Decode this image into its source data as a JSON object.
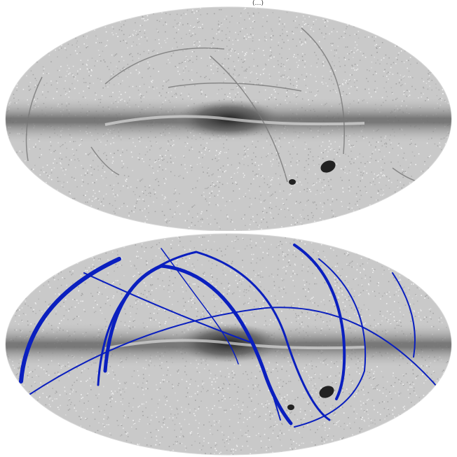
{
  "figure": {
    "header_fragment": "(…)",
    "panels": [
      {
        "id": "top",
        "projection": "mollweide",
        "description_color_scale": "grayscale",
        "overlay_tracks": false
      },
      {
        "id": "bottom",
        "projection": "mollweide",
        "description_color_scale": "grayscale",
        "overlay_tracks": true,
        "track_color": "#0a1fbf",
        "track_count": 9
      }
    ]
  }
}
